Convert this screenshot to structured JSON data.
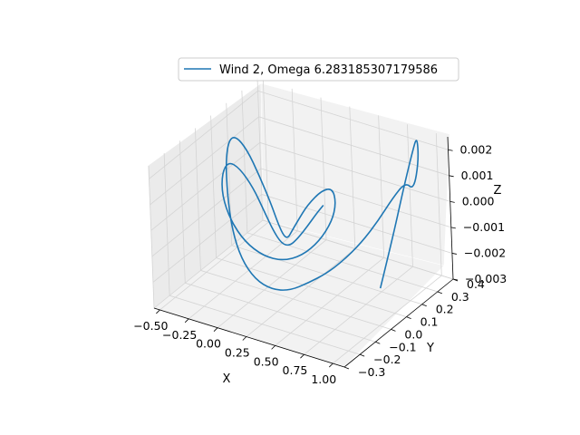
{
  "chart_data": {
    "type": "line",
    "projection": "3d",
    "title": "",
    "xlabel": "X",
    "ylabel": "Y",
    "zlabel": "Z",
    "xlim": [
      -0.55,
      1.1
    ],
    "ylim": [
      -0.3,
      0.4
    ],
    "zlim": [
      -0.003,
      0.0025
    ],
    "x_ticks": [
      "−0.50",
      "−0.25",
      "0.00",
      "0.25",
      "0.50",
      "0.75",
      "1.00"
    ],
    "y_ticks": [
      "−0.3",
      "−0.2",
      "−0.1",
      "0.0",
      "0.1",
      "0.2",
      "0.3",
      "0.4"
    ],
    "z_ticks": [
      "−0.003",
      "−0.002",
      "−0.001",
      "0.000",
      "0.001",
      "0.002"
    ],
    "grid": true,
    "legend_position": "top-center",
    "series": [
      {
        "name": "Wind 2, Omega 6.283185307179586",
        "color": "#1f77b4",
        "trajectory": [
          [
            0.88,
            0.1,
            -0.0022
          ],
          [
            0.92,
            0.16,
            -0.0005
          ],
          [
            0.95,
            0.22,
            0.0012
          ],
          [
            0.98,
            0.26,
            0.0024
          ],
          [
            1.0,
            0.28,
            0.003
          ],
          [
            1.02,
            0.27,
            0.0021
          ],
          [
            1.01,
            0.24,
            0.0011
          ],
          [
            0.98,
            0.21,
            0.0015
          ],
          [
            0.92,
            0.17,
            0.001
          ],
          [
            0.84,
            0.13,
            0.0002
          ],
          [
            0.74,
            0.09,
            -0.0006
          ],
          [
            0.64,
            0.04,
            -0.0012
          ],
          [
            0.55,
            0.0,
            -0.0016
          ],
          [
            0.45,
            -0.04,
            -0.0019
          ],
          [
            0.35,
            -0.09,
            -0.0021
          ],
          [
            0.25,
            -0.13,
            -0.002
          ],
          [
            0.15,
            -0.16,
            -0.0016
          ],
          [
            0.05,
            -0.17,
            -0.0009
          ],
          [
            -0.05,
            -0.15,
            0.0
          ],
          [
            -0.15,
            -0.1,
            0.001
          ],
          [
            -0.25,
            -0.03,
            0.0018
          ],
          [
            -0.33,
            0.05,
            0.0021
          ],
          [
            -0.38,
            0.13,
            0.0018
          ],
          [
            -0.37,
            0.19,
            0.001
          ],
          [
            -0.3,
            0.21,
            0.0
          ],
          [
            -0.18,
            0.19,
            -0.0008
          ],
          [
            -0.05,
            0.14,
            -0.0012
          ],
          [
            0.08,
            0.08,
            -0.0012
          ],
          [
            0.2,
            0.02,
            -0.0008
          ],
          [
            0.3,
            -0.03,
            -0.0002
          ],
          [
            0.4,
            -0.06,
            0.0005
          ],
          [
            0.48,
            -0.05,
            0.0012
          ],
          [
            0.54,
            0.0,
            0.0016
          ],
          [
            0.55,
            0.06,
            0.0014
          ],
          [
            0.52,
            0.1,
            0.0006
          ],
          [
            0.45,
            0.12,
            -0.0003
          ],
          [
            0.36,
            0.1,
            -0.0011
          ],
          [
            0.26,
            0.06,
            -0.0016
          ],
          [
            0.16,
            0.01,
            -0.0017
          ],
          [
            0.06,
            -0.04,
            -0.0014
          ],
          [
            -0.04,
            -0.08,
            -0.0008
          ],
          [
            -0.13,
            -0.1,
            0.0
          ],
          [
            -0.21,
            -0.09,
            0.0008
          ],
          [
            -0.26,
            -0.05,
            0.0014
          ],
          [
            -0.27,
            0.0,
            0.0016
          ],
          [
            -0.23,
            0.04,
            0.0012
          ],
          [
            -0.16,
            0.07,
            0.0004
          ],
          [
            -0.07,
            0.07,
            -0.0004
          ],
          [
            0.03,
            0.05,
            -0.0009
          ],
          [
            0.14,
            0.02,
            -0.0011
          ],
          [
            0.25,
            -0.01,
            -0.0009
          ],
          [
            0.35,
            -0.03,
            -0.0004
          ],
          [
            0.44,
            -0.03,
            0.0002
          ],
          [
            0.5,
            -0.01,
            0.0007
          ],
          [
            0.52,
            0.02,
            0.0009
          ]
        ]
      }
    ]
  }
}
